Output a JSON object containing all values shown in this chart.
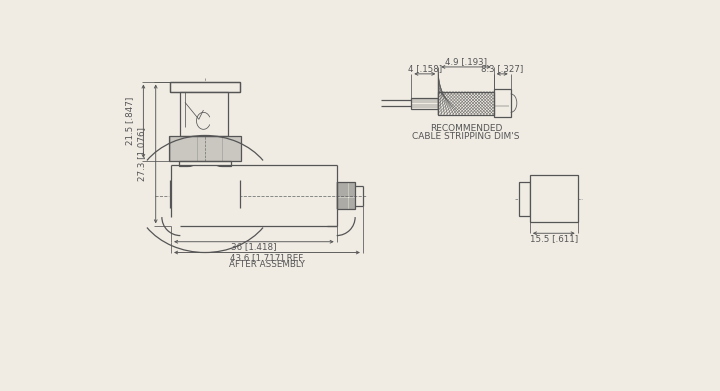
{
  "bg_color": "#f0ece4",
  "lc": "#555555",
  "fig_w": 7.2,
  "fig_h": 3.91,
  "dpi": 100,
  "texts": {
    "v273": "27.3 [1.076]",
    "v215": "21.5 [.847]",
    "h36": "36 [1.418]",
    "h436a": "43.6 [1.717] REF.",
    "h436b": "AFTER ASSEMBLY",
    "cs4": "4 [.158]",
    "cs49": "4.9 [.193]",
    "cs83": "8.3 [.327]",
    "sp15": "15.5 [.611]",
    "rec1": "RECOMMENDED",
    "rec2": "CABLE STRIPPING DIM'S"
  }
}
